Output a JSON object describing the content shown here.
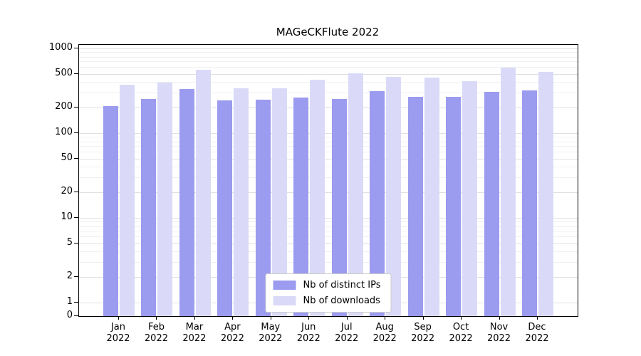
{
  "chart_data": {
    "type": "bar",
    "title": "MAGeCKFlute 2022",
    "year": "2022",
    "categories": [
      "Jan",
      "Feb",
      "Mar",
      "Apr",
      "May",
      "Jun",
      "Jul",
      "Aug",
      "Sep",
      "Oct",
      "Nov",
      "Dec"
    ],
    "series": [
      {
        "name": "Nb of distinct IPs",
        "color": "#9b9bf0",
        "values": [
          210,
          252,
          330,
          243,
          247,
          262,
          252,
          315,
          267,
          267,
          305,
          320
        ]
      },
      {
        "name": "Nb of downloads",
        "color": "#dadaf8",
        "values": [
          370,
          395,
          565,
          340,
          338,
          425,
          510,
          460,
          452,
          410,
          590,
          530
        ]
      }
    ],
    "yscale": "symlog",
    "yticks": [
      1000,
      500,
      200,
      100,
      50,
      20,
      10,
      5,
      2,
      1,
      0
    ],
    "ylim": [
      0,
      1000
    ],
    "grid": "horizontal, major and minor log gridlines",
    "legend_position": "bottom-center"
  }
}
